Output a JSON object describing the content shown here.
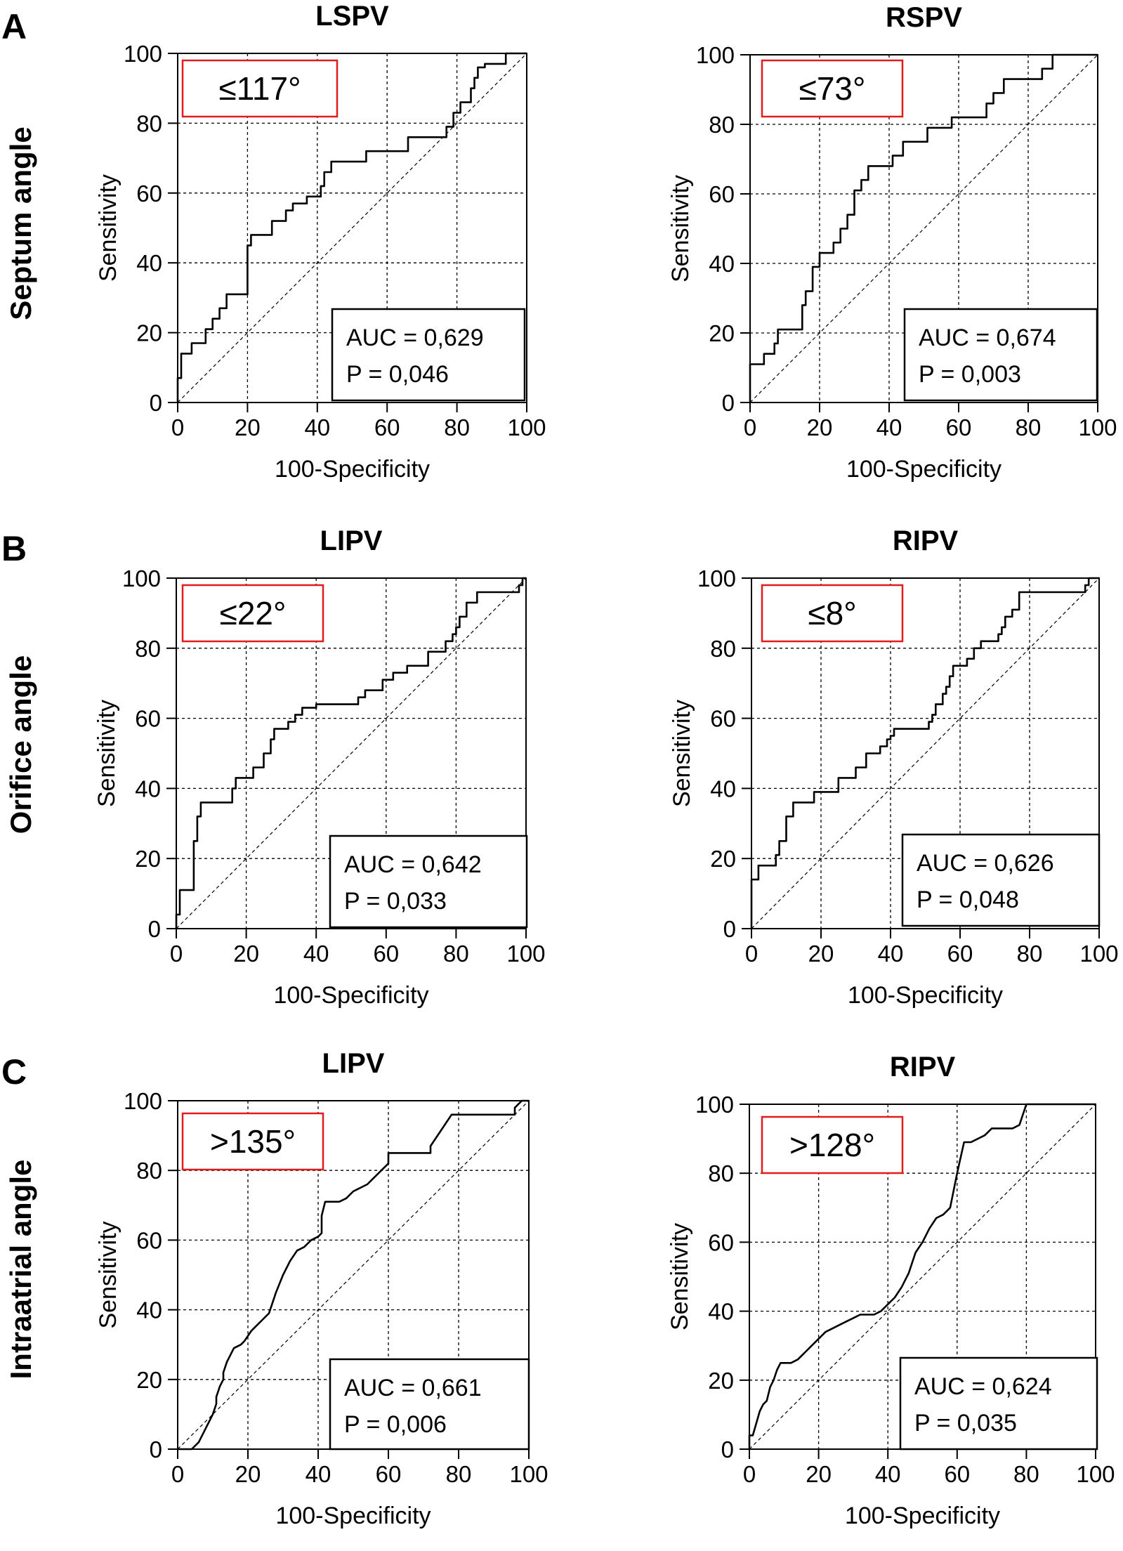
{
  "rows": [
    {
      "letter": "A",
      "label": "Septum angle"
    },
    {
      "letter": "B",
      "label": "Orifice angle"
    },
    {
      "letter": "C",
      "label": "Intraatrial angle"
    }
  ],
  "chart_data": [
    {
      "type": "line",
      "title": "LSPV",
      "xlabel": "100-Specificity",
      "ylabel": "Sensitivity",
      "xlim": [
        0,
        100
      ],
      "ylim": [
        0,
        100
      ],
      "grid": true,
      "xticks": [
        0,
        20,
        40,
        60,
        80,
        100
      ],
      "yticks": [
        0,
        20,
        40,
        60,
        80,
        100
      ],
      "cutoff": "≤117°",
      "auc": "AUC = 0,629",
      "p": "P = 0,046",
      "series": [
        {
          "x": [
            0,
            0,
            1,
            1,
            4,
            4,
            8,
            8,
            10,
            10,
            12,
            12,
            14,
            14,
            20,
            20,
            21,
            21,
            27,
            27,
            31,
            31,
            33,
            33,
            37,
            37,
            41,
            41,
            42,
            42,
            44,
            44,
            47,
            47,
            54,
            54,
            62,
            62,
            66,
            66,
            77,
            77,
            79,
            79,
            81,
            81,
            84,
            84,
            85,
            85,
            86,
            86,
            88,
            88,
            94,
            94,
            100
          ],
          "y": [
            0,
            7,
            7,
            14,
            14,
            17,
            17,
            21,
            21,
            24,
            24,
            27,
            27,
            31,
            31,
            45,
            45,
            48,
            48,
            52,
            52,
            55,
            55,
            57,
            57,
            59,
            59,
            62,
            62,
            66,
            66,
            69,
            69,
            69,
            69,
            72,
            72,
            72,
            72,
            76,
            76,
            79,
            79,
            83,
            83,
            86,
            86,
            90,
            90,
            93,
            93,
            96,
            96,
            97,
            97,
            100,
            100
          ]
        }
      ]
    },
    {
      "type": "line",
      "title": "RSPV",
      "xlabel": "100-Specificity",
      "ylabel": "Sensitivity",
      "xlim": [
        0,
        100
      ],
      "ylim": [
        0,
        100
      ],
      "grid": true,
      "xticks": [
        0,
        20,
        40,
        60,
        80,
        100
      ],
      "yticks": [
        0,
        20,
        40,
        60,
        80,
        100
      ],
      "cutoff": "≤73°",
      "auc": "AUC = 0,674",
      "p": "P = 0,003",
      "series": [
        {
          "x": [
            0,
            0,
            4,
            4,
            7,
            7,
            8,
            8,
            10,
            10,
            15,
            15,
            16,
            16,
            18,
            18,
            20,
            20,
            24,
            24,
            26,
            26,
            28,
            28,
            30,
            30,
            32,
            32,
            34,
            34,
            36,
            36,
            41,
            41,
            44,
            44,
            48,
            48,
            51,
            51,
            58,
            58,
            68,
            68,
            70,
            70,
            73,
            73,
            76,
            76,
            84,
            84,
            87,
            87,
            100
          ],
          "y": [
            0,
            11,
            11,
            14,
            14,
            17,
            17,
            21,
            21,
            21,
            21,
            28,
            28,
            32,
            32,
            39,
            39,
            43,
            43,
            46,
            46,
            50,
            50,
            54,
            54,
            61,
            61,
            64,
            64,
            68,
            68,
            68,
            68,
            71,
            71,
            75,
            75,
            75,
            75,
            79,
            79,
            82,
            82,
            86,
            86,
            89,
            89,
            93,
            93,
            93,
            93,
            96,
            96,
            100,
            100
          ]
        }
      ]
    },
    {
      "type": "line",
      "title": "LIPV",
      "xlabel": "100-Specificity",
      "ylabel": "Sensitivity",
      "xlim": [
        0,
        100
      ],
      "ylim": [
        0,
        100
      ],
      "grid": true,
      "xticks": [
        0,
        20,
        40,
        60,
        80,
        100
      ],
      "yticks": [
        0,
        20,
        40,
        60,
        80,
        100
      ],
      "cutoff": "≤22°",
      "auc": "AUC = 0,642",
      "p": "P = 0,033",
      "series": [
        {
          "x": [
            0,
            0,
            1,
            1,
            5,
            5,
            6,
            6,
            7,
            7,
            16,
            16,
            17,
            17,
            22,
            22,
            25,
            25,
            27,
            27,
            28,
            28,
            32,
            32,
            34,
            34,
            36,
            36,
            40,
            40,
            52,
            52,
            54,
            54,
            59,
            59,
            62,
            62,
            66,
            66,
            72,
            72,
            77,
            77,
            79,
            79,
            80,
            80,
            81,
            81,
            83,
            83,
            86,
            86,
            98,
            98,
            99,
            99,
            100,
            100
          ],
          "y": [
            0,
            4,
            4,
            11,
            11,
            25,
            25,
            32,
            32,
            36,
            36,
            40,
            40,
            43,
            43,
            46,
            46,
            50,
            50,
            54,
            54,
            57,
            57,
            59,
            59,
            61,
            61,
            63,
            63,
            64,
            64,
            66,
            66,
            68,
            68,
            71,
            71,
            73,
            73,
            75,
            75,
            79,
            79,
            82,
            82,
            84,
            84,
            86,
            86,
            89,
            89,
            93,
            93,
            96,
            96,
            98,
            98,
            100,
            100,
            100
          ]
        }
      ]
    },
    {
      "type": "line",
      "title": "RIPV",
      "xlabel": "100-Specificity",
      "ylabel": "Sensitivity",
      "xlim": [
        0,
        100
      ],
      "ylim": [
        0,
        100
      ],
      "grid": true,
      "xticks": [
        0,
        20,
        40,
        60,
        80,
        100
      ],
      "yticks": [
        0,
        20,
        40,
        60,
        80,
        100
      ],
      "cutoff": "≤8°",
      "auc": "AUC = 0,626",
      "p": "P = 0,048",
      "series": [
        {
          "x": [
            0,
            0,
            2,
            2,
            4,
            4,
            7,
            7,
            8,
            8,
            10,
            10,
            12,
            12,
            18,
            18,
            21,
            21,
            25,
            25,
            28,
            28,
            30,
            30,
            33,
            33,
            37,
            37,
            39,
            39,
            40,
            40,
            41,
            41,
            51,
            51,
            52,
            52,
            53,
            53,
            55,
            55,
            56,
            56,
            57,
            57,
            58,
            58,
            60,
            60,
            62,
            62,
            64,
            64,
            66,
            66,
            69,
            69,
            71,
            71,
            72,
            72,
            73,
            73,
            75,
            75,
            77,
            77,
            96,
            96,
            97,
            97,
            100
          ],
          "y": [
            0,
            14,
            14,
            18,
            18,
            18,
            18,
            21,
            21,
            25,
            25,
            32,
            32,
            36,
            36,
            39,
            39,
            39,
            39,
            43,
            43,
            43,
            43,
            46,
            46,
            50,
            50,
            52,
            52,
            54,
            54,
            55,
            55,
            57,
            57,
            59,
            59,
            61,
            61,
            64,
            64,
            67,
            67,
            69,
            69,
            72,
            72,
            75,
            75,
            75,
            75,
            77,
            77,
            80,
            80,
            82,
            82,
            82,
            82,
            84,
            84,
            86,
            86,
            89,
            89,
            91,
            91,
            96,
            96,
            98,
            98,
            100,
            100
          ]
        }
      ]
    },
    {
      "type": "line",
      "title": "LIPV",
      "xlabel": "100-Specificity",
      "ylabel": "Sensitivity",
      "xlim": [
        0,
        100
      ],
      "ylim": [
        0,
        100
      ],
      "grid": true,
      "xticks": [
        0,
        20,
        40,
        60,
        80,
        100
      ],
      "yticks": [
        0,
        20,
        40,
        60,
        80,
        100
      ],
      "cutoff": ">135°",
      "auc": "AUC = 0,661",
      "p": "P = 0,006",
      "series": [
        {
          "x": [
            0,
            4,
            4,
            6,
            8,
            10,
            11,
            11,
            12,
            13,
            13,
            14,
            15,
            16,
            18,
            19,
            21,
            23,
            24,
            25,
            26,
            28,
            30,
            32,
            34,
            36,
            38,
            40,
            41,
            41,
            42,
            44,
            46,
            48,
            50,
            52,
            54,
            56,
            58,
            60,
            60,
            64,
            68,
            72,
            72,
            74,
            76,
            78,
            80,
            80,
            84,
            88,
            92,
            96,
            96,
            98,
            100
          ],
          "y": [
            0,
            0,
            0,
            2,
            6,
            10,
            13,
            15,
            18,
            20,
            22,
            25,
            27,
            29,
            30,
            31,
            34,
            36,
            37,
            38,
            39,
            45,
            50,
            54,
            57,
            58,
            60,
            61,
            62,
            67,
            71,
            71,
            71,
            72,
            74,
            75,
            76,
            78,
            80,
            82,
            85,
            85,
            85,
            85,
            87,
            90,
            93,
            96,
            96,
            96,
            96,
            96,
            96,
            96,
            98,
            100,
            100
          ]
        }
      ]
    },
    {
      "type": "line",
      "title": "RIPV",
      "xlabel": "100-Specificity",
      "ylabel": "Sensitivity",
      "xlim": [
        0,
        100
      ],
      "ylim": [
        0,
        100
      ],
      "grid": true,
      "xticks": [
        0,
        20,
        40,
        60,
        80,
        100
      ],
      "yticks": [
        0,
        20,
        40,
        60,
        80,
        100
      ],
      "cutoff": ">128°",
      "auc": "AUC = 0,624",
      "p": "P = 0,035",
      "series": [
        {
          "x": [
            0,
            0,
            1,
            3,
            4,
            5,
            6,
            7,
            8,
            9,
            10,
            12,
            14,
            16,
            18,
            20,
            22,
            24,
            26,
            28,
            30,
            32,
            34,
            36,
            38,
            40,
            42,
            44,
            46,
            48,
            50,
            52,
            54,
            56,
            58,
            60,
            62,
            64,
            66,
            68,
            70,
            72,
            74,
            76,
            78,
            80,
            82,
            84,
            86,
            88,
            90,
            92,
            94,
            96,
            98,
            100
          ],
          "y": [
            0,
            4,
            4,
            11,
            13,
            14,
            18,
            20,
            23,
            25,
            25,
            25,
            26,
            28,
            30,
            32,
            34,
            35,
            36,
            37,
            38,
            39,
            39,
            39,
            40,
            42,
            44,
            47,
            51,
            57,
            60,
            64,
            67,
            68,
            70,
            80,
            89,
            89,
            90,
            91,
            93,
            93,
            93,
            93,
            94,
            100,
            100,
            100,
            100,
            100,
            100,
            100,
            100,
            100,
            100,
            100
          ]
        }
      ]
    }
  ]
}
